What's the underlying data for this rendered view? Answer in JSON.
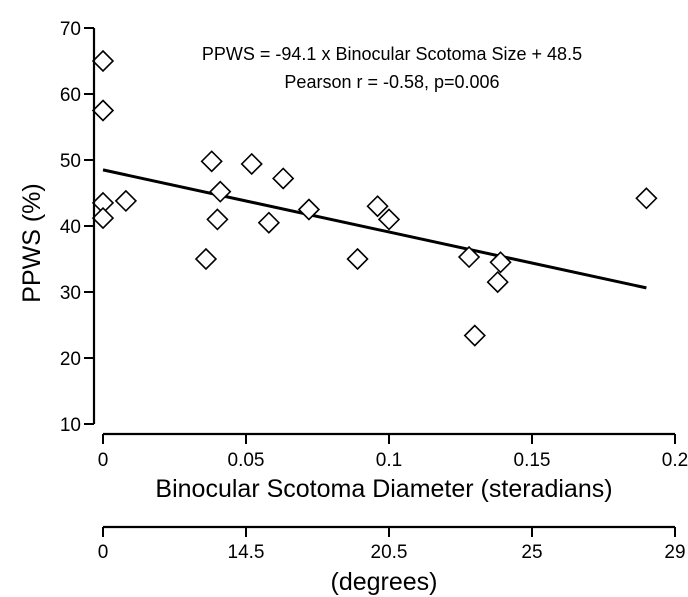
{
  "chart_data": {
    "type": "scatter",
    "title": "",
    "xlabel": "Binocular Scotoma Diameter (steradians)",
    "ylabel": "PPWS (%)",
    "xlim": [
      0,
      0.2
    ],
    "ylim": [
      10,
      70
    ],
    "x_ticks": [
      "0",
      "0.05",
      "0.1",
      "0.15",
      "0.2"
    ],
    "y_ticks": [
      "10",
      "20",
      "30",
      "40",
      "50",
      "60",
      "70"
    ],
    "secondary_x_axis": {
      "label": "(degrees)",
      "ticks": [
        {
          "value": 0,
          "label": "0"
        },
        {
          "value": 0.05,
          "label": "14.5"
        },
        {
          "value": 0.1,
          "label": "20.5"
        },
        {
          "value": 0.15,
          "label": "25"
        },
        {
          "value": 0.2,
          "label": "29"
        }
      ]
    },
    "annotations": [
      "PPWS = -94.1 x Binocular Scotoma Size + 48.5",
      "Pearson r  = -0.58, p=0.006"
    ],
    "fit_line": {
      "slope": -94.1,
      "intercept": 48.5,
      "x_range": [
        0,
        0.19
      ]
    },
    "points": [
      {
        "x": 0.0,
        "y": 65.0
      },
      {
        "x": 0.0,
        "y": 57.5
      },
      {
        "x": 0.0,
        "y": 43.5
      },
      {
        "x": 0.0,
        "y": 41.2
      },
      {
        "x": 0.008,
        "y": 43.8
      },
      {
        "x": 0.036,
        "y": 35.0
      },
      {
        "x": 0.038,
        "y": 49.8
      },
      {
        "x": 0.04,
        "y": 41.0
      },
      {
        "x": 0.041,
        "y": 45.2
      },
      {
        "x": 0.052,
        "y": 49.4
      },
      {
        "x": 0.058,
        "y": 40.5
      },
      {
        "x": 0.063,
        "y": 47.2
      },
      {
        "x": 0.072,
        "y": 42.5
      },
      {
        "x": 0.089,
        "y": 35.0
      },
      {
        "x": 0.096,
        "y": 43.0
      },
      {
        "x": 0.1,
        "y": 41.0
      },
      {
        "x": 0.128,
        "y": 35.3
      },
      {
        "x": 0.13,
        "y": 23.4
      },
      {
        "x": 0.138,
        "y": 31.5
      },
      {
        "x": 0.139,
        "y": 34.5
      },
      {
        "x": 0.19,
        "y": 44.2
      }
    ],
    "grid": false,
    "legend": "none"
  }
}
